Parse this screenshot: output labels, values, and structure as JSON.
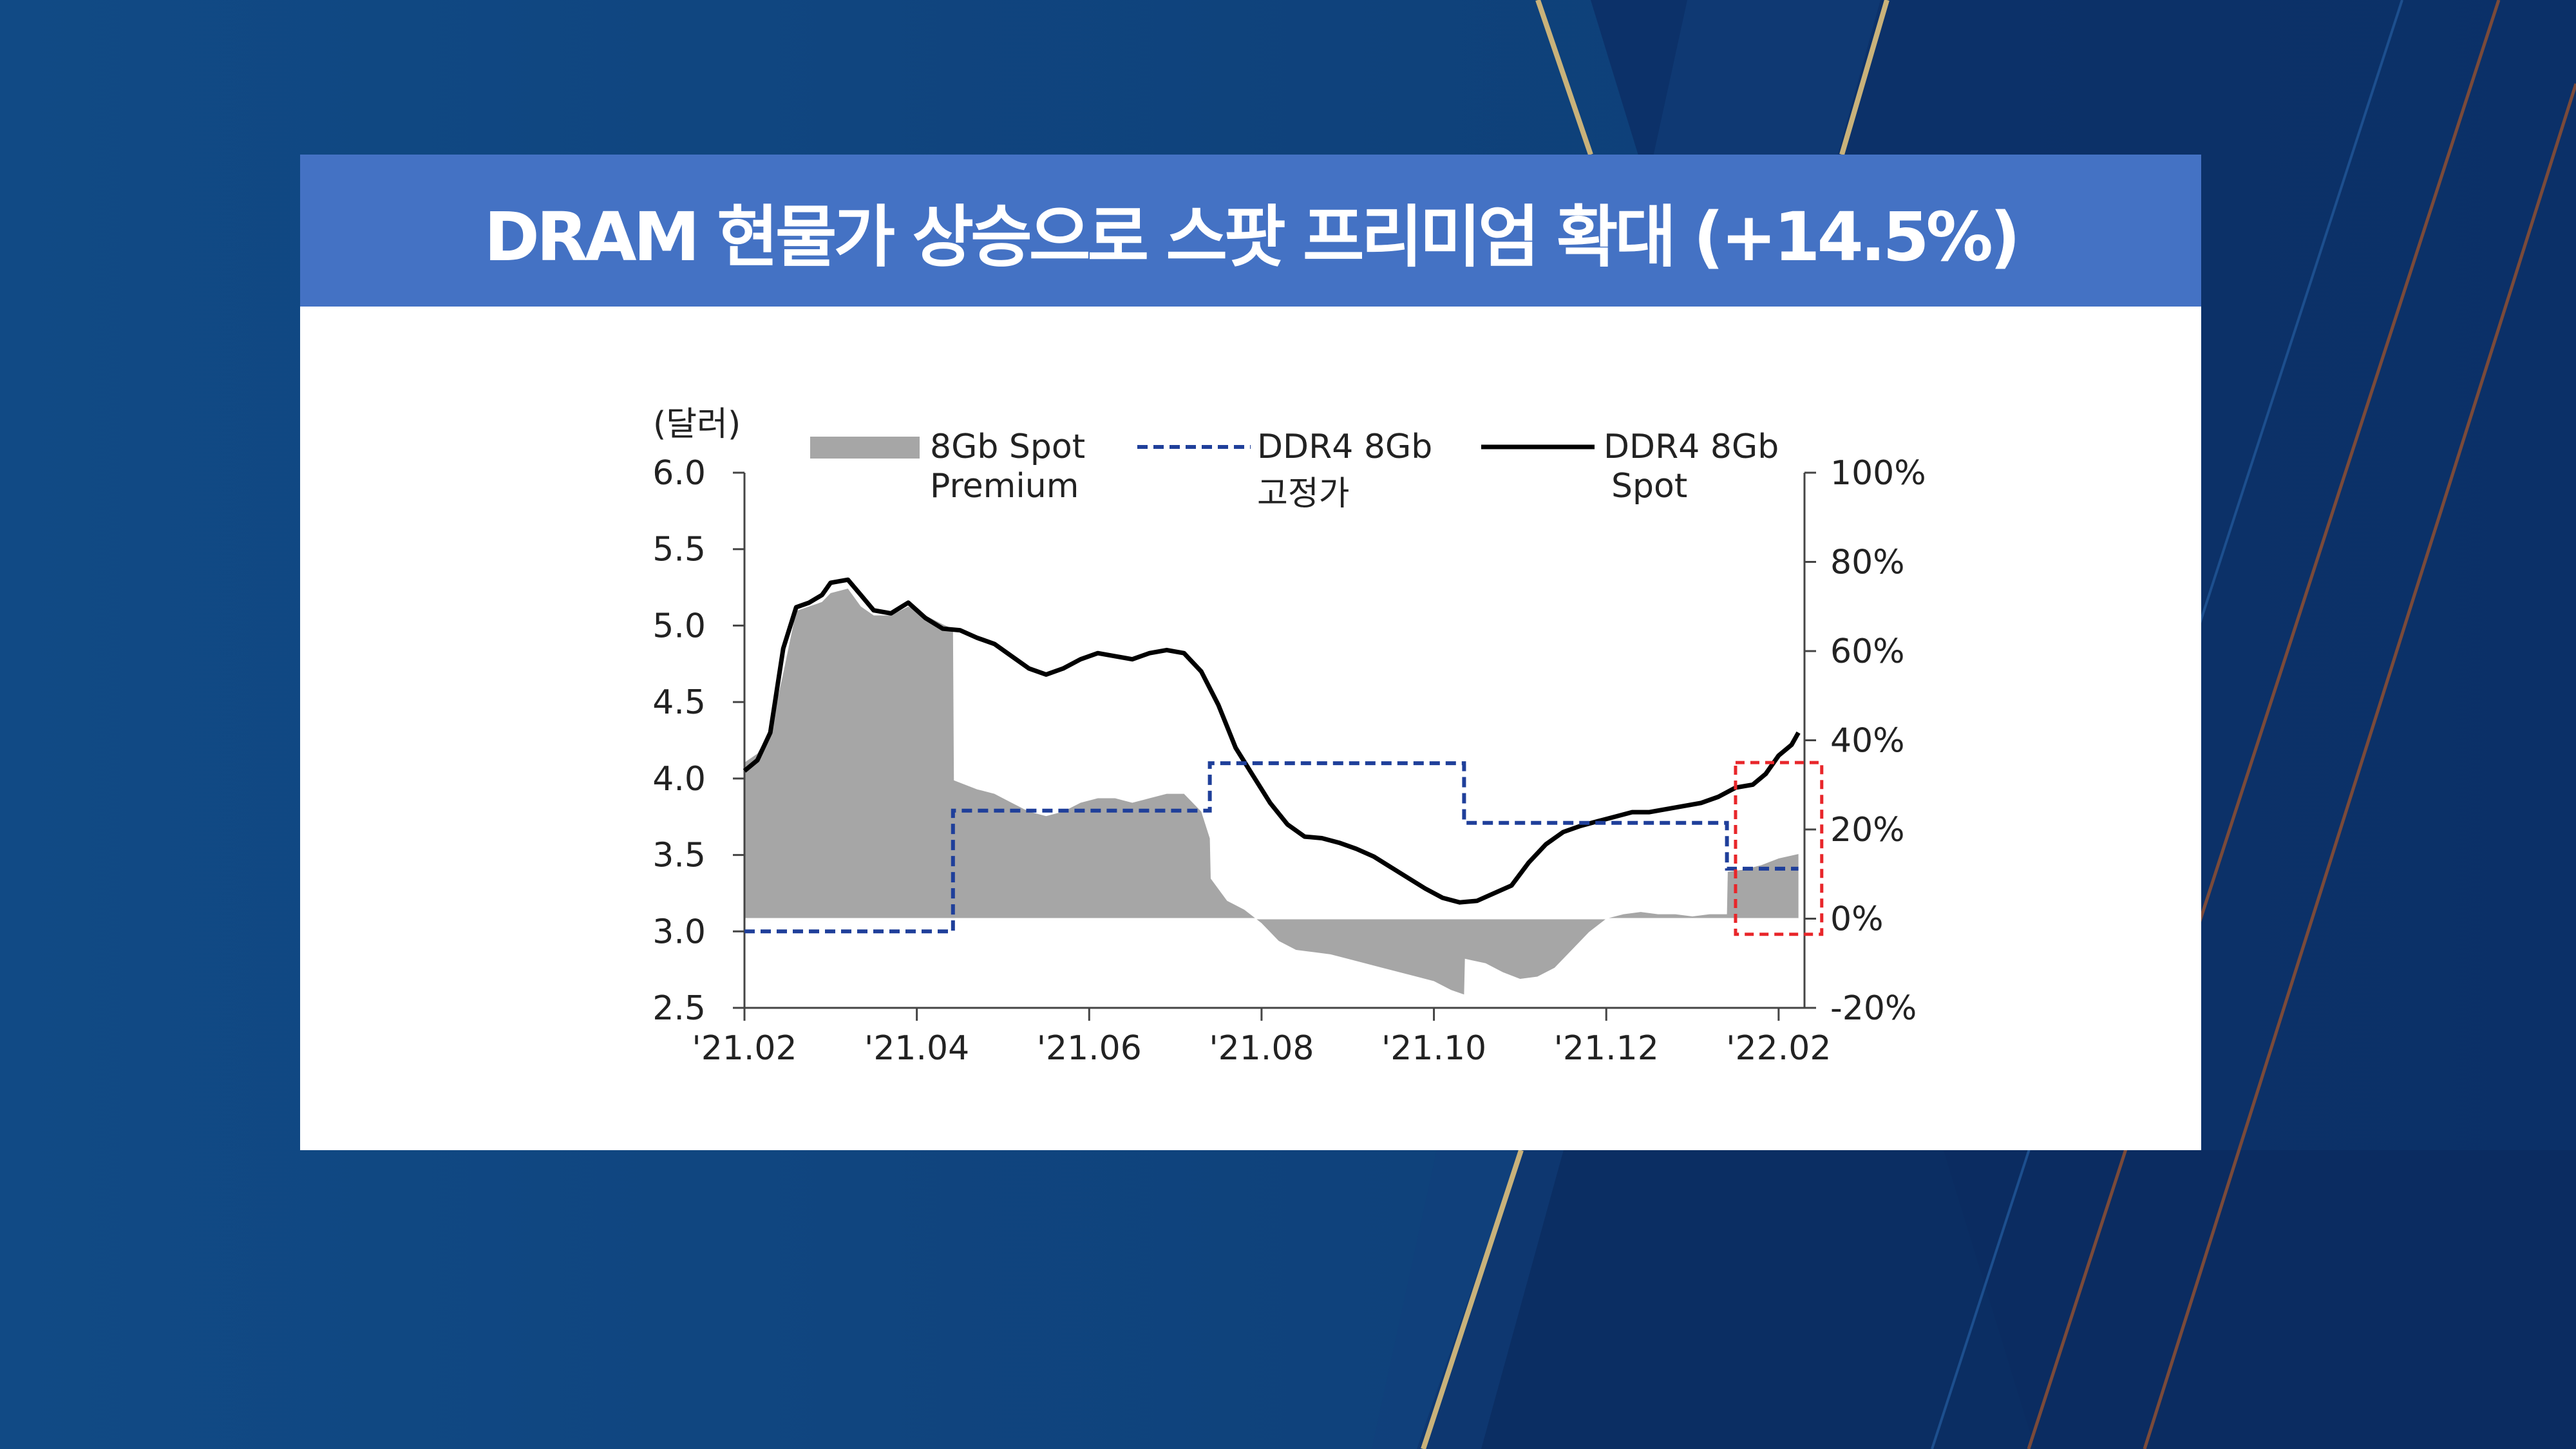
{
  "title": "DRAM 현물가 상승으로 스팟 프리미엄 확대 (+14.5%)",
  "colors": {
    "background": "#0f3e78",
    "title_bar": "#4472c4",
    "premium_fill": "#a6a6a6",
    "fixed_line": "#1f3f9a",
    "spot_line": "#000000",
    "highlight_box": "#e8262a",
    "gold_stripe": "#c9b27a"
  },
  "chart_data": {
    "type": "line",
    "left_axis_unit": "(달러)",
    "ylim": [
      2.5,
      6.0
    ],
    "yticks": [
      "6.0",
      "5.5",
      "5.0",
      "4.5",
      "4.0",
      "3.5",
      "3.0",
      "2.5"
    ],
    "y2lim": [
      -20,
      100
    ],
    "y2ticks": [
      "100%",
      "80%",
      "60%",
      "40%",
      "20%",
      "0%",
      "-20%"
    ],
    "xlim": [
      0,
      12.3
    ],
    "xticks": [
      "'21.02",
      "'21.04",
      "'21.06",
      "'21.08",
      "'21.10",
      "'21.12",
      "'22.02"
    ],
    "legend": [
      {
        "label": [
          "8Gb Spot",
          "Premium"
        ],
        "style": "area"
      },
      {
        "label": [
          "DDR4 8Gb",
          "고정가"
        ],
        "style": "dashed"
      },
      {
        "label": [
          "DDR4 8Gb",
          "Spot"
        ],
        "style": "solid"
      }
    ],
    "series": [
      {
        "name": "DDR4 8Gb Spot",
        "axis": "left",
        "points": [
          [
            0,
            4.05
          ],
          [
            0.15,
            4.12
          ],
          [
            0.3,
            4.3
          ],
          [
            0.45,
            4.85
          ],
          [
            0.6,
            5.12
          ],
          [
            0.75,
            5.15
          ],
          [
            0.9,
            5.2
          ],
          [
            1.0,
            5.28
          ],
          [
            1.2,
            5.3
          ],
          [
            1.35,
            5.2
          ],
          [
            1.5,
            5.1
          ],
          [
            1.7,
            5.08
          ],
          [
            1.9,
            5.15
          ],
          [
            2.1,
            5.05
          ],
          [
            2.3,
            4.98
          ],
          [
            2.5,
            4.97
          ],
          [
            2.7,
            4.92
          ],
          [
            2.9,
            4.88
          ],
          [
            3.1,
            4.8
          ],
          [
            3.3,
            4.72
          ],
          [
            3.5,
            4.68
          ],
          [
            3.7,
            4.72
          ],
          [
            3.9,
            4.78
          ],
          [
            4.1,
            4.82
          ],
          [
            4.3,
            4.8
          ],
          [
            4.5,
            4.78
          ],
          [
            4.7,
            4.82
          ],
          [
            4.9,
            4.84
          ],
          [
            5.1,
            4.82
          ],
          [
            5.3,
            4.7
          ],
          [
            5.5,
            4.48
          ],
          [
            5.7,
            4.2
          ],
          [
            5.9,
            4.02
          ],
          [
            6.1,
            3.84
          ],
          [
            6.3,
            3.7
          ],
          [
            6.5,
            3.62
          ],
          [
            6.7,
            3.61
          ],
          [
            6.9,
            3.58
          ],
          [
            7.1,
            3.54
          ],
          [
            7.3,
            3.49
          ],
          [
            7.5,
            3.42
          ],
          [
            7.7,
            3.35
          ],
          [
            7.9,
            3.28
          ],
          [
            8.1,
            3.22
          ],
          [
            8.3,
            3.19
          ],
          [
            8.5,
            3.2
          ],
          [
            8.7,
            3.25
          ],
          [
            8.9,
            3.3
          ],
          [
            9.1,
            3.45
          ],
          [
            9.3,
            3.57
          ],
          [
            9.5,
            3.65
          ],
          [
            9.7,
            3.69
          ],
          [
            9.9,
            3.72
          ],
          [
            10.1,
            3.75
          ],
          [
            10.3,
            3.78
          ],
          [
            10.5,
            3.78
          ],
          [
            10.7,
            3.8
          ],
          [
            10.9,
            3.82
          ],
          [
            11.1,
            3.84
          ],
          [
            11.3,
            3.88
          ],
          [
            11.5,
            3.94
          ],
          [
            11.7,
            3.96
          ],
          [
            11.85,
            4.03
          ],
          [
            12.0,
            4.15
          ],
          [
            12.15,
            4.22
          ],
          [
            12.23,
            4.3
          ]
        ]
      },
      {
        "name": "DDR4 8Gb 고정가",
        "axis": "left",
        "points": [
          [
            0,
            3.0
          ],
          [
            2.42,
            3.0
          ],
          [
            2.42,
            3.79
          ],
          [
            5.4,
            3.79
          ],
          [
            5.4,
            4.1
          ],
          [
            8.35,
            4.1
          ],
          [
            8.35,
            3.71
          ],
          [
            11.4,
            3.71
          ],
          [
            11.4,
            3.41
          ],
          [
            12.23,
            3.41
          ]
        ]
      },
      {
        "name": "8Gb Spot Premium",
        "axis": "right",
        "points": [
          [
            0,
            35
          ],
          [
            0.15,
            37
          ],
          [
            0.3,
            42
          ],
          [
            0.45,
            55
          ],
          [
            0.6,
            69
          ],
          [
            0.75,
            70
          ],
          [
            0.9,
            71
          ],
          [
            1.0,
            73
          ],
          [
            1.2,
            74
          ],
          [
            1.35,
            70
          ],
          [
            1.5,
            68
          ],
          [
            1.7,
            68
          ],
          [
            1.9,
            70
          ],
          [
            2.1,
            68
          ],
          [
            2.3,
            66
          ],
          [
            2.42,
            65
          ],
          [
            2.43,
            31
          ],
          [
            2.7,
            29
          ],
          [
            2.9,
            28
          ],
          [
            3.1,
            26
          ],
          [
            3.3,
            24
          ],
          [
            3.5,
            23
          ],
          [
            3.7,
            24
          ],
          [
            3.9,
            26
          ],
          [
            4.1,
            27
          ],
          [
            4.3,
            27
          ],
          [
            4.5,
            26
          ],
          [
            4.7,
            27
          ],
          [
            4.9,
            28
          ],
          [
            5.1,
            28
          ],
          [
            5.3,
            24
          ],
          [
            5.4,
            18
          ],
          [
            5.41,
            9
          ],
          [
            5.6,
            4
          ],
          [
            5.8,
            2
          ],
          [
            6.0,
            -1
          ],
          [
            6.2,
            -5
          ],
          [
            6.4,
            -7
          ],
          [
            6.6,
            -7.5
          ],
          [
            6.8,
            -8
          ],
          [
            7.0,
            -9
          ],
          [
            7.2,
            -10
          ],
          [
            7.4,
            -11
          ],
          [
            7.6,
            -12
          ],
          [
            7.8,
            -13
          ],
          [
            8.0,
            -14
          ],
          [
            8.2,
            -16
          ],
          [
            8.35,
            -17
          ],
          [
            8.36,
            -9
          ],
          [
            8.6,
            -10
          ],
          [
            8.8,
            -12
          ],
          [
            9.0,
            -13.5
          ],
          [
            9.2,
            -13
          ],
          [
            9.4,
            -11
          ],
          [
            9.6,
            -7
          ],
          [
            9.8,
            -3
          ],
          [
            10.0,
            0
          ],
          [
            10.2,
            1
          ],
          [
            10.4,
            1.5
          ],
          [
            10.6,
            1
          ],
          [
            10.8,
            1
          ],
          [
            11.0,
            0.5
          ],
          [
            11.2,
            1
          ],
          [
            11.4,
            1
          ],
          [
            11.41,
            10.5
          ],
          [
            11.6,
            11
          ],
          [
            11.8,
            12
          ],
          [
            12.0,
            13.5
          ],
          [
            12.23,
            14.5
          ]
        ]
      }
    ],
    "highlight": {
      "x": [
        11.5,
        12.5
      ],
      "y2": [
        -3.5,
        35
      ]
    }
  }
}
